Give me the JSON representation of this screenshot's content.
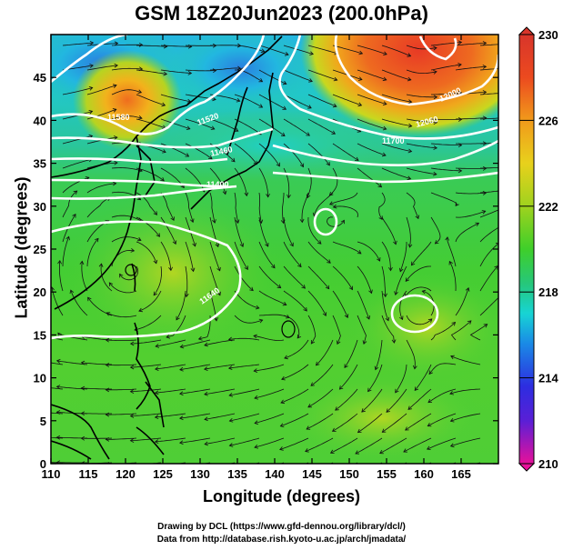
{
  "title": "GSM 18Z20Jun2023 (200.0hPa)",
  "x_axis": {
    "label": "Longitude (degrees)",
    "range": [
      110,
      170
    ],
    "ticks": [
      "110",
      "115",
      "120",
      "125",
      "130",
      "135",
      "140",
      "145",
      "150",
      "155",
      "160",
      "165"
    ]
  },
  "y_axis": {
    "label": "Latitude  (degrees)",
    "range": [
      0,
      50
    ],
    "ticks": [
      "0",
      "5",
      "10",
      "15",
      "20",
      "25",
      "30",
      "35",
      "40",
      "45"
    ]
  },
  "colorbar": {
    "range": [
      210,
      230
    ],
    "ticks": [
      "230",
      "226",
      "222",
      "218",
      "214",
      "210"
    ],
    "colors": [
      "#e7119a",
      "#9b1fcf",
      "#2d2de0",
      "#1a8ae6",
      "#17d4d4",
      "#26c77a",
      "#3fcf2a",
      "#9fd21e",
      "#e8d11c",
      "#f19a1b",
      "#ec4a1f",
      "#d8352b"
    ]
  },
  "contour_labels": [
    "11400",
    "11460",
    "11520",
    "11580",
    "11640",
    "11700",
    "12060",
    "12000",
    "11940",
    "11520"
  ],
  "credits": {
    "line1": "Drawing by DCL (https://www.gfd-dennou.org/library/dcl/)",
    "line2": "Data from http://database.rish.kyoto-u.ac.jp/arch/jmadata/"
  }
}
